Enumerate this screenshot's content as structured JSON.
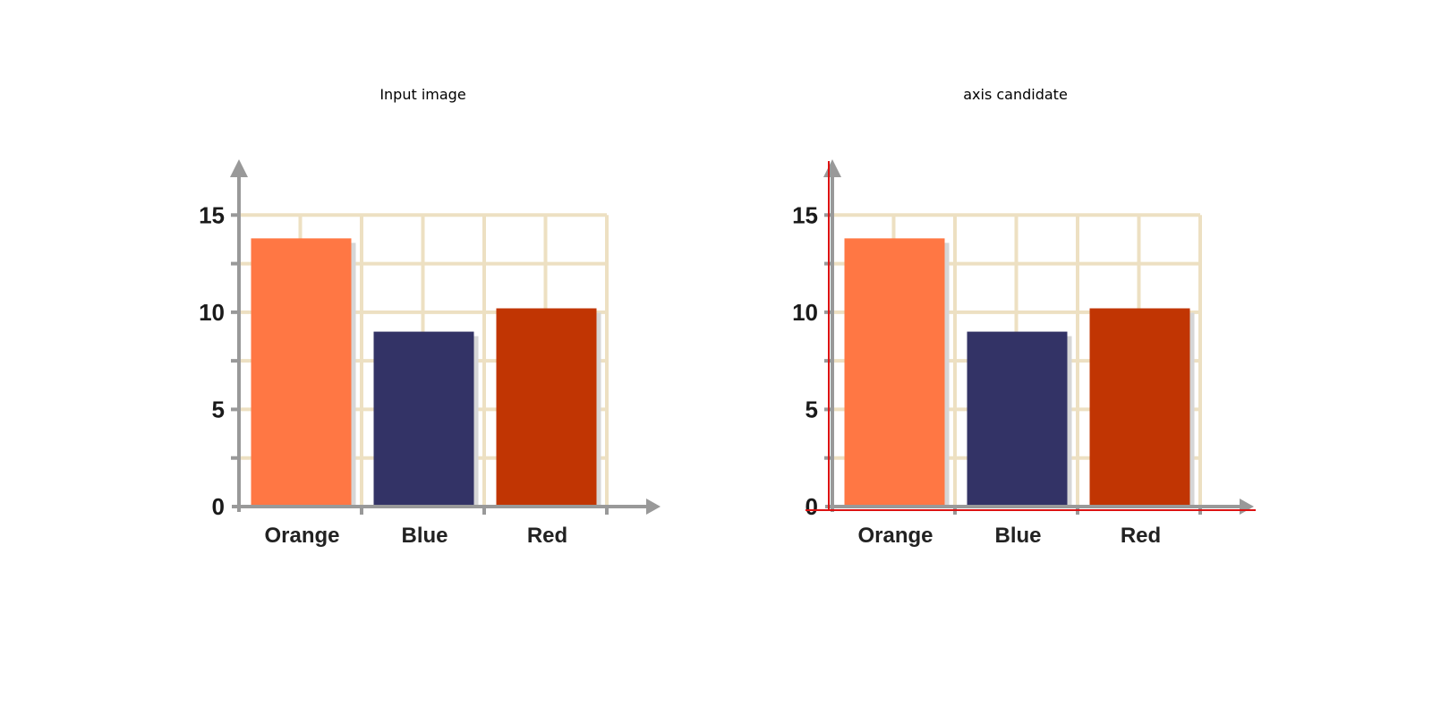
{
  "panels": [
    {
      "title": "Input image"
    },
    {
      "title": "axis candidate"
    }
  ],
  "chart_data": [
    {
      "type": "bar",
      "title": "",
      "categories": [
        "Orange",
        "Blue",
        "Red"
      ],
      "values": [
        13.8,
        9.0,
        10.2
      ],
      "colors": [
        "#ff7744",
        "#333366",
        "#c13503"
      ],
      "ylim": [
        0,
        17.5
      ],
      "yticks": [
        0,
        5,
        10,
        15
      ],
      "grid": true,
      "grid_color": "#ede0c2",
      "axis_color": "#999999"
    },
    {
      "type": "bar",
      "title": "",
      "categories": [
        "Orange",
        "Blue",
        "Red"
      ],
      "values": [
        13.8,
        9.0,
        10.2
      ],
      "colors": [
        "#ff7744",
        "#333366",
        "#c13503"
      ],
      "ylim": [
        0,
        17.5
      ],
      "yticks": [
        0,
        5,
        10,
        15
      ],
      "grid": true,
      "grid_color": "#ede0c2",
      "axis_color": "#999999",
      "candidate_axis_color": "#dd1111"
    }
  ]
}
